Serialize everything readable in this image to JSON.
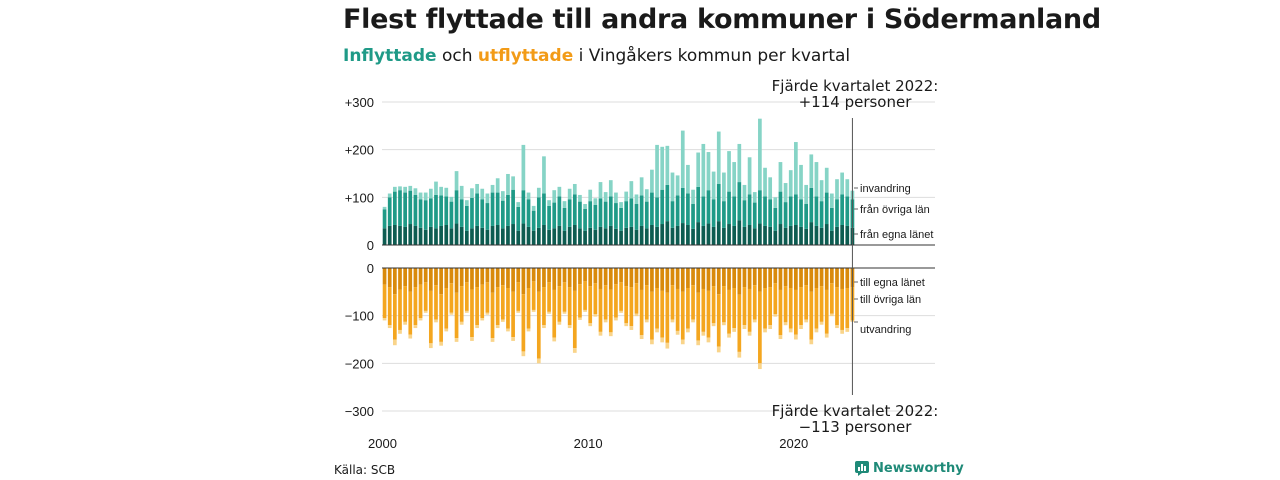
{
  "title": "Flest flyttade till andra kommuner i Södermanland",
  "subtitle": {
    "part1": "Inflyttade",
    "part2": " och ",
    "part3": "utflyttade",
    "part4": " i Vingåkers kommun per kvartal"
  },
  "source": "Källa: SCB",
  "brand": "Newsworthy",
  "annotations": {
    "top_line1": "Fjärde kvartalet 2022:",
    "top_line2": "+114 personer",
    "bottom_line1": "Fjärde kvartalet 2022:",
    "bottom_line2": "−113 personer"
  },
  "colors": {
    "in_same": "#0d5c51",
    "in_other": "#1f9a87",
    "in_immig": "#86d4c6",
    "out_same": "#d98a0b",
    "out_other": "#f4a61f",
    "out_emig": "#f9d48a"
  },
  "chart_data": {
    "type": "bar",
    "stacked": true,
    "xlabel": "",
    "ylabel": "",
    "x_tick_labels": [
      "2000",
      "2010",
      "2020"
    ],
    "top_panel": {
      "ylim": [
        0,
        300
      ],
      "y_tick_labels": [
        "0",
        "+100",
        "+200",
        "+300"
      ],
      "legend_labels": [
        "invandring",
        "från övriga län",
        "från egna länet"
      ]
    },
    "bottom_panel": {
      "ylim": [
        -300,
        0
      ],
      "y_tick_labels": [
        "0",
        "−100",
        "−200",
        "−300"
      ],
      "legend_labels": [
        "till egna länet",
        "till övriga län",
        "utvandring"
      ]
    },
    "periods": [
      "2000K1",
      "2000K2",
      "2000K3",
      "2000K4",
      "2001K1",
      "2001K2",
      "2001K3",
      "2001K4",
      "2002K1",
      "2002K2",
      "2002K3",
      "2002K4",
      "2003K1",
      "2003K2",
      "2003K3",
      "2003K4",
      "2004K1",
      "2004K2",
      "2004K3",
      "2004K4",
      "2005K1",
      "2005K2",
      "2005K3",
      "2005K4",
      "2006K1",
      "2006K2",
      "2006K3",
      "2006K4",
      "2007K1",
      "2007K2",
      "2007K3",
      "2007K4",
      "2008K1",
      "2008K2",
      "2008K3",
      "2008K4",
      "2009K1",
      "2009K2",
      "2009K3",
      "2009K4",
      "2010K1",
      "2010K2",
      "2010K3",
      "2010K4",
      "2011K1",
      "2011K2",
      "2011K3",
      "2011K4",
      "2012K1",
      "2012K2",
      "2012K3",
      "2012K4",
      "2013K1",
      "2013K2",
      "2013K3",
      "2013K4",
      "2014K1",
      "2014K2",
      "2014K3",
      "2014K4",
      "2015K1",
      "2015K2",
      "2015K3",
      "2015K4",
      "2016K1",
      "2016K2",
      "2016K3",
      "2016K4",
      "2017K1",
      "2017K2",
      "2017K3",
      "2017K4",
      "2018K1",
      "2018K2",
      "2018K3",
      "2018K4",
      "2019K1",
      "2019K2",
      "2019K3",
      "2019K4",
      "2020K1",
      "2020K2",
      "2020K3",
      "2020K4",
      "2021K1",
      "2021K2",
      "2021K3",
      "2021K4",
      "2022K1",
      "2022K2",
      "2022K3",
      "2022K4"
    ],
    "series": [
      {
        "name": "från egna länet",
        "panel": "top",
        "values": [
          35,
          40,
          42,
          40,
          38,
          44,
          40,
          36,
          32,
          38,
          35,
          40,
          42,
          35,
          45,
          38,
          30,
          35,
          40,
          36,
          32,
          40,
          42,
          35,
          40,
          44,
          30,
          45,
          38,
          30,
          36,
          42,
          32,
          35,
          40,
          30,
          38,
          42,
          35,
          30,
          36,
          32,
          38,
          35,
          40,
          34,
          30,
          36,
          38,
          32,
          40,
          35,
          42,
          38,
          44,
          50,
          36,
          40,
          46,
          42,
          34,
          48,
          40,
          45,
          38,
          50,
          36,
          44,
          40,
          52,
          38,
          42,
          35,
          45,
          40,
          38,
          30,
          44,
          36,
          40,
          42,
          38,
          34,
          48,
          40,
          36,
          44,
          30,
          38,
          42,
          40,
          36
        ]
      },
      {
        "name": "från övriga län",
        "panel": "top",
        "values": [
          40,
          60,
          70,
          75,
          72,
          70,
          65,
          60,
          62,
          60,
          70,
          64,
          60,
          56,
          70,
          58,
          52,
          64,
          68,
          60,
          56,
          70,
          68,
          58,
          65,
          72,
          50,
          70,
          58,
          42,
          64,
          66,
          50,
          54,
          62,
          48,
          58,
          64,
          56,
          46,
          56,
          52,
          60,
          56,
          62,
          54,
          48,
          56,
          60,
          54,
          64,
          56,
          68,
          62,
          72,
          76,
          56,
          64,
          74,
          66,
          52,
          74,
          62,
          70,
          58,
          78,
          56,
          68,
          62,
          80,
          56,
          64,
          54,
          70,
          62,
          58,
          48,
          68,
          54,
          62,
          64,
          58,
          52,
          72,
          62,
          56,
          66,
          48,
          58,
          64,
          62,
          60
        ]
      },
      {
        "name": "invandring",
        "panel": "top",
        "values": [
          5,
          8,
          10,
          8,
          12,
          10,
          14,
          14,
          16,
          20,
          28,
          18,
          18,
          10,
          40,
          28,
          12,
          20,
          20,
          22,
          20,
          16,
          30,
          20,
          44,
          28,
          10,
          95,
          14,
          10,
          20,
          78,
          12,
          26,
          20,
          14,
          22,
          22,
          14,
          10,
          24,
          14,
          34,
          20,
          34,
          22,
          12,
          20,
          36,
          20,
          38,
          26,
          48,
          110,
          90,
          82,
          60,
          42,
          120,
          60,
          30,
          72,
          110,
          80,
          58,
          110,
          60,
          85,
          72,
          80,
          32,
          78,
          22,
          150,
          60,
          46,
          22,
          62,
          40,
          55,
          110,
          72,
          40,
          70,
          72,
          44,
          52,
          30,
          42,
          46,
          36,
          18
        ]
      },
      {
        "name": "till egna länet",
        "panel": "bottom",
        "values": [
          -35,
          -40,
          -55,
          -45,
          -38,
          -50,
          -40,
          -35,
          -30,
          -48,
          -36,
          -55,
          -42,
          -32,
          -52,
          -38,
          -30,
          -45,
          -40,
          -35,
          -30,
          -52,
          -40,
          -36,
          -42,
          -50,
          -30,
          -55,
          -42,
          -28,
          -50,
          -40,
          -30,
          -46,
          -38,
          -30,
          -40,
          -48,
          -34,
          -28,
          -38,
          -32,
          -44,
          -36,
          -45,
          -34,
          -30,
          -38,
          -40,
          -32,
          -46,
          -36,
          -50,
          -42,
          -48,
          -52,
          -36,
          -44,
          -50,
          -42,
          -36,
          -52,
          -44,
          -48,
          -38,
          -55,
          -38,
          -46,
          -42,
          -56,
          -40,
          -44,
          -36,
          -50,
          -42,
          -40,
          -32,
          -46,
          -38,
          -42,
          -46,
          -40,
          -36,
          -50,
          -42,
          -38,
          -46,
          -32,
          -40,
          -44,
          -42,
          -40
        ]
      },
      {
        "name": "till övriga län",
        "panel": "bottom",
        "values": [
          -70,
          -80,
          -95,
          -85,
          -75,
          -90,
          -80,
          -70,
          -60,
          -110,
          -72,
          -100,
          -85,
          -62,
          -95,
          -75,
          -60,
          -100,
          -80,
          -70,
          -64,
          -95,
          -80,
          -72,
          -85,
          -95,
          -60,
          -120,
          -85,
          -60,
          -140,
          -80,
          -62,
          -100,
          -75,
          -62,
          -80,
          -120,
          -70,
          -60,
          -78,
          -65,
          -90,
          -72,
          -90,
          -70,
          -60,
          -78,
          -82,
          -64,
          -95,
          -72,
          -100,
          -85,
          -98,
          -105,
          -72,
          -88,
          -100,
          -85,
          -72,
          -100,
          -90,
          -98,
          -78,
          -110,
          -76,
          -92,
          -84,
          -120,
          -80,
          -90,
          -72,
          -150,
          -85,
          -80,
          -65,
          -95,
          -76,
          -85,
          -94,
          -80,
          -72,
          -100,
          -85,
          -75,
          -92,
          -64,
          -80,
          -86,
          -84,
          -70
        ]
      },
      {
        "name": "utvandring",
        "panel": "bottom",
        "values": [
          -5,
          -6,
          -12,
          -8,
          -6,
          -8,
          -6,
          -5,
          -4,
          -10,
          -6,
          -8,
          -6,
          -4,
          -8,
          -6,
          -4,
          -8,
          -6,
          -5,
          -4,
          -8,
          -6,
          -5,
          -6,
          -8,
          -4,
          -10,
          -6,
          -4,
          -10,
          -6,
          -4,
          -8,
          -6,
          -4,
          -6,
          -10,
          -5,
          -4,
          -6,
          -5,
          -8,
          -6,
          -8,
          -6,
          -4,
          -6,
          -8,
          -5,
          -8,
          -6,
          -10,
          -8,
          -10,
          -12,
          -6,
          -8,
          -10,
          -8,
          -6,
          -10,
          -8,
          -10,
          -6,
          -12,
          -6,
          -8,
          -8,
          -12,
          -8,
          -8,
          -6,
          -12,
          -8,
          -8,
          -5,
          -8,
          -6,
          -8,
          -10,
          -8,
          -6,
          -10,
          -8,
          -6,
          -8,
          -5,
          -6,
          -8,
          -8,
          -3
        ]
      }
    ]
  }
}
